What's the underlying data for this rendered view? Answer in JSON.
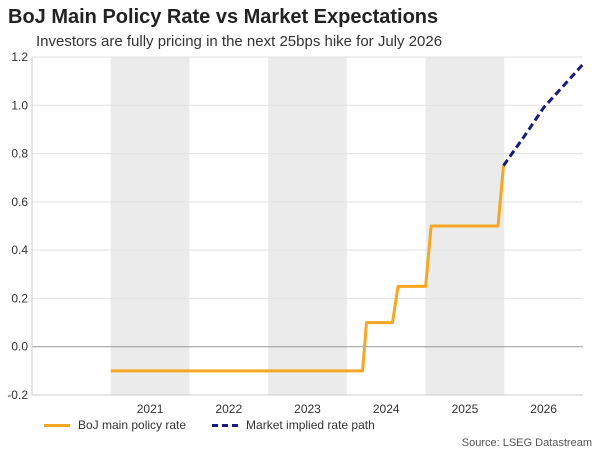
{
  "title": "BoJ Main Policy Rate vs Market Expectations",
  "subtitle": "Investors are fully pricing in the next 25bps hike for July 2026",
  "source": "Source: LSEG Datastream",
  "chart_data": {
    "type": "line",
    "ylim": [
      -0.2,
      1.2
    ],
    "xlim": [
      2020.0,
      2027.0
    ],
    "yticks": [
      "-0.2",
      "0.0",
      "0.2",
      "0.4",
      "0.6",
      "0.8",
      "1.0",
      "1.2"
    ],
    "year_labels": [
      "2021",
      "2022",
      "2023",
      "2024",
      "2025",
      "2026"
    ],
    "grid": true,
    "legend_position": "bottom",
    "shaded_years": [
      "2021",
      "2023",
      "2025"
    ],
    "series": [
      {
        "name": "BoJ main policy rate",
        "color": "#f5a623",
        "style": "solid",
        "points": [
          {
            "x": 2021.0,
            "y": -0.1
          },
          {
            "x": 2024.2,
            "y": -0.1
          },
          {
            "x": 2024.25,
            "y": 0.1
          },
          {
            "x": 2024.58,
            "y": 0.1
          },
          {
            "x": 2024.65,
            "y": 0.25
          },
          {
            "x": 2025.0,
            "y": 0.25
          },
          {
            "x": 2025.07,
            "y": 0.5
          },
          {
            "x": 2025.92,
            "y": 0.5
          },
          {
            "x": 2025.99,
            "y": 0.75
          }
        ]
      },
      {
        "name": "Market implied rate path",
        "color": "#1a1a7e",
        "style": "dashed",
        "points": [
          {
            "x": 2025.99,
            "y": 0.75
          },
          {
            "x": 2026.25,
            "y": 0.87
          },
          {
            "x": 2026.5,
            "y": 0.99
          },
          {
            "x": 2026.75,
            "y": 1.08
          },
          {
            "x": 2027.0,
            "y": 1.17
          }
        ]
      }
    ]
  }
}
